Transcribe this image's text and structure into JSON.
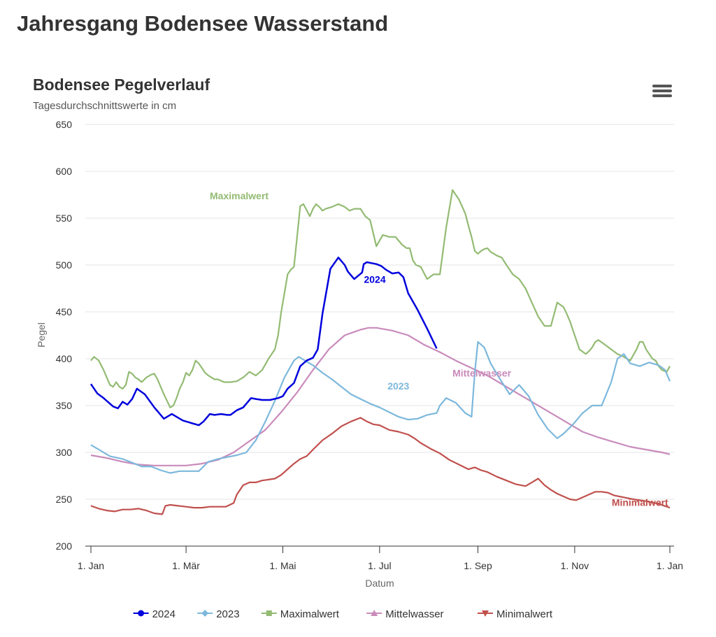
{
  "page": {
    "title": "Jahresgang Bodensee Wasserstand"
  },
  "menu": {
    "icon": "hamburger-menu-icon"
  },
  "chart_data": {
    "type": "line",
    "title": "Bodensee Pegelverlauf",
    "subtitle": "Tagesdurchschnittswerte in cm",
    "xlabel": "Datum",
    "ylabel": "Pegel",
    "ylim": [
      200,
      650
    ],
    "yticks": [
      200,
      250,
      300,
      350,
      400,
      450,
      500,
      550,
      600,
      650
    ],
    "xlim": [
      0,
      365
    ],
    "xticks": [
      {
        "day": 0,
        "label": "1. Jan"
      },
      {
        "day": 60,
        "label": "1. Mär"
      },
      {
        "day": 121,
        "label": "1. Mai"
      },
      {
        "day": 182,
        "label": "1. Jul"
      },
      {
        "day": 244,
        "label": "1. Sep"
      },
      {
        "day": 305,
        "label": "1. Nov"
      },
      {
        "day": 365,
        "label": "1. Jan"
      }
    ],
    "grid": true,
    "legend_position": "bottom-center",
    "series": [
      {
        "name": "2024",
        "color": "#0000dd",
        "marker": "circle",
        "label_text": "2024",
        "x": [
          0,
          4,
          8,
          14,
          17,
          20,
          23,
          26,
          29,
          34,
          40,
          46,
          51,
          55,
          58,
          62,
          64,
          68,
          71,
          75,
          78,
          82,
          86,
          88,
          92,
          96,
          101,
          104,
          108,
          113,
          118,
          121,
          124,
          128,
          132,
          136,
          140,
          143,
          146,
          151,
          156,
          160,
          162,
          166,
          171,
          172,
          174,
          177,
          180,
          183,
          186,
          190,
          194,
          197,
          200,
          206,
          212,
          218
        ],
        "values": [
          373,
          363,
          358,
          349,
          347,
          354,
          351,
          357,
          368,
          362,
          348,
          336,
          341,
          337,
          334,
          332,
          331,
          329,
          333,
          341,
          340,
          341,
          340,
          340,
          345,
          348,
          358,
          357,
          356,
          356,
          358,
          360,
          368,
          374,
          392,
          398,
          401,
          410,
          448,
          496,
          508,
          500,
          493,
          485,
          492,
          501,
          503,
          502,
          501,
          499,
          495,
          491,
          492,
          487,
          470,
          452,
          432,
          411
        ]
      },
      {
        "name": "2023",
        "color": "#7db8dc",
        "marker": "diamond",
        "label_text": "2023",
        "x": [
          0,
          6,
          12,
          20,
          26,
          32,
          38,
          44,
          50,
          56,
          62,
          68,
          74,
          80,
          86,
          92,
          98,
          104,
          110,
          116,
          122,
          128,
          131,
          135,
          140,
          146,
          152,
          158,
          164,
          170,
          176,
          182,
          188,
          194,
          200,
          206,
          212,
          218,
          220,
          224,
          230,
          236,
          240,
          242,
          244,
          248,
          252,
          258,
          264,
          270,
          276,
          282,
          288,
          294,
          298,
          304,
          310,
          316,
          322,
          328,
          332,
          336,
          340,
          346,
          352,
          358,
          362,
          365
        ],
        "values": [
          308,
          302,
          296,
          293,
          289,
          285,
          285,
          281,
          278,
          280,
          280,
          280,
          290,
          293,
          295,
          297,
          300,
          313,
          333,
          355,
          380,
          398,
          402,
          398,
          393,
          385,
          378,
          370,
          362,
          357,
          352,
          348,
          343,
          338,
          335,
          336,
          340,
          342,
          350,
          358,
          353,
          342,
          338,
          385,
          418,
          412,
          395,
          378,
          362,
          372,
          360,
          340,
          325,
          315,
          320,
          330,
          342,
          350,
          350,
          375,
          400,
          405,
          395,
          392,
          396,
          393,
          388,
          376
        ]
      },
      {
        "name": "Maximalwert",
        "color": "#93bb73",
        "marker": "square",
        "label_text": "Maximalwert",
        "x": [
          0,
          2,
          5,
          8,
          10,
          12,
          14,
          16,
          18,
          20,
          22,
          24,
          26,
          28,
          30,
          32,
          35,
          38,
          40,
          42,
          44,
          46,
          48,
          50,
          52,
          54,
          56,
          58,
          60,
          62,
          64,
          66,
          68,
          70,
          72,
          74,
          76,
          78,
          80,
          84,
          88,
          92,
          96,
          100,
          104,
          108,
          112,
          116,
          118,
          120,
          122,
          124,
          126,
          128,
          130,
          132,
          134,
          138,
          140,
          142,
          144,
          146,
          148,
          152,
          156,
          160,
          163,
          166,
          170,
          173,
          176,
          180,
          184,
          188,
          192,
          196,
          199,
          201,
          203,
          205,
          208,
          212,
          216,
          220,
          224,
          228,
          232,
          236,
          238,
          240,
          242,
          244,
          246,
          248,
          250,
          252,
          256,
          259,
          262,
          266,
          270,
          274,
          278,
          282,
          286,
          290,
          294,
          298,
          300,
          302,
          304,
          306,
          308,
          312,
          314,
          316,
          318,
          320,
          324,
          328,
          332,
          336,
          340,
          344,
          346,
          348,
          350,
          352,
          354,
          356,
          358,
          360,
          363,
          365
        ],
        "values": [
          398,
          402,
          398,
          388,
          380,
          372,
          370,
          375,
          370,
          368,
          372,
          386,
          384,
          380,
          378,
          375,
          380,
          383,
          384,
          378,
          370,
          362,
          355,
          348,
          350,
          358,
          368,
          375,
          385,
          382,
          388,
          398,
          395,
          390,
          385,
          382,
          380,
          378,
          378,
          375,
          375,
          376,
          380,
          386,
          382,
          388,
          400,
          410,
          425,
          450,
          470,
          490,
          495,
          498,
          530,
          563,
          565,
          552,
          560,
          565,
          562,
          558,
          560,
          562,
          565,
          562,
          558,
          560,
          560,
          552,
          548,
          520,
          532,
          530,
          530,
          522,
          518,
          518,
          505,
          500,
          498,
          485,
          490,
          490,
          540,
          580,
          570,
          555,
          542,
          530,
          515,
          512,
          515,
          517,
          518,
          514,
          510,
          508,
          500,
          490,
          485,
          475,
          460,
          445,
          435,
          435,
          460,
          455,
          448,
          440,
          430,
          420,
          410,
          405,
          408,
          412,
          418,
          420,
          415,
          410,
          405,
          402,
          398,
          410,
          418,
          418,
          410,
          405,
          400,
          398,
          392,
          388,
          386,
          392
        ]
      },
      {
        "name": "Mittelwasser",
        "color": "#c98bbb",
        "marker": "triangle",
        "label_text": "Mittelwasser",
        "x": [
          0,
          10,
          20,
          30,
          40,
          50,
          60,
          70,
          80,
          90,
          100,
          110,
          120,
          130,
          140,
          150,
          160,
          170,
          175,
          180,
          190,
          200,
          210,
          220,
          230,
          240,
          250,
          260,
          270,
          280,
          290,
          300,
          310,
          320,
          330,
          340,
          350,
          360,
          365
        ],
        "values": [
          297,
          294,
          290,
          287,
          286,
          286,
          286,
          288,
          292,
          300,
          312,
          324,
          343,
          364,
          388,
          410,
          425,
          431,
          433,
          433,
          430,
          425,
          415,
          407,
          398,
          390,
          382,
          372,
          362,
          352,
          342,
          332,
          322,
          316,
          311,
          306,
          303,
          300,
          298
        ]
      },
      {
        "name": "Minimalwert",
        "color": "#c0504d",
        "marker": "triangle-down",
        "label_text": "Minimalwert",
        "x": [
          0,
          5,
          10,
          15,
          20,
          25,
          30,
          35,
          40,
          45,
          47,
          50,
          55,
          60,
          65,
          70,
          75,
          80,
          85,
          90,
          92,
          96,
          100,
          104,
          108,
          112,
          116,
          120,
          124,
          128,
          132,
          136,
          140,
          146,
          152,
          158,
          164,
          170,
          174,
          178,
          182,
          188,
          194,
          200,
          204,
          208,
          214,
          220,
          226,
          232,
          238,
          242,
          246,
          250,
          256,
          262,
          268,
          274,
          278,
          282,
          286,
          290,
          294,
          298,
          302,
          306,
          310,
          314,
          318,
          322,
          326,
          330,
          336,
          342,
          350,
          358,
          365
        ],
        "values": [
          243,
          240,
          238,
          237,
          239,
          239,
          240,
          238,
          235,
          234,
          243,
          244,
          243,
          242,
          241,
          241,
          242,
          242,
          242,
          246,
          255,
          265,
          268,
          268,
          270,
          271,
          272,
          276,
          282,
          288,
          293,
          296,
          303,
          313,
          320,
          328,
          333,
          337,
          333,
          330,
          329,
          324,
          322,
          319,
          315,
          310,
          304,
          299,
          292,
          287,
          282,
          284,
          281,
          279,
          274,
          270,
          266,
          264,
          268,
          272,
          265,
          260,
          256,
          253,
          250,
          249,
          252,
          255,
          258,
          258,
          257,
          254,
          252,
          250,
          248,
          245,
          241
        ]
      }
    ]
  }
}
